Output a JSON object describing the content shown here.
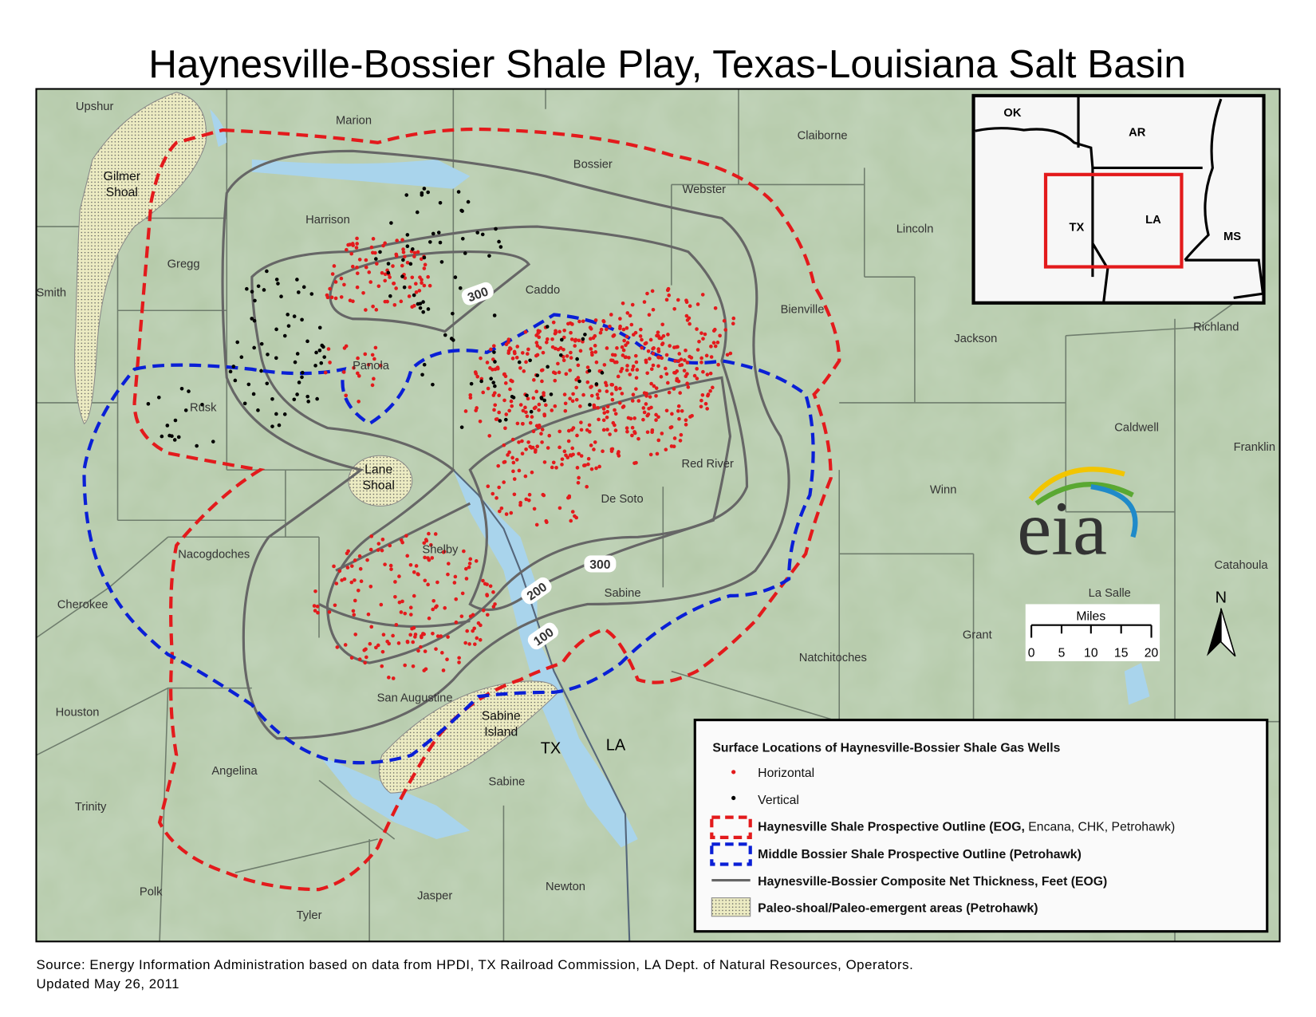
{
  "title": "Haynesville-Bossier Shale Play, Texas-Louisiana Salt Basin",
  "counties": [
    "Upshur",
    "Marion",
    "Claiborne",
    "Bossier",
    "Webster",
    "Harrison",
    "Lincoln",
    "Gregg",
    "Smith",
    "Caddo",
    "Bienville",
    "Panola",
    "Jackson",
    "Richland",
    "Rusk",
    "Caldwell",
    "Franklin",
    "Red River",
    "Lane",
    "Winn",
    "De Soto",
    "Nacogdoches",
    "Shelby",
    "Catahoula",
    "La Salle",
    "Sabine",
    "Cherokee",
    "Grant",
    "Natchitoches",
    "San Augustine",
    "Houston",
    "Angelina",
    "Sabine",
    "Trinity",
    "Polk",
    "Jasper",
    "Newton",
    "Tyler"
  ],
  "shoals": {
    "gilmer": [
      "Gilmer",
      "Shoal"
    ],
    "lane": [
      "Lane",
      "Shoal"
    ],
    "sabine": [
      "Sabine",
      "Island"
    ]
  },
  "contour_labels": [
    "300",
    "300",
    "200",
    "100"
  ],
  "state_labels": {
    "tx": "TX",
    "la": "LA"
  },
  "inset": {
    "states": [
      "OK",
      "AR",
      "TX",
      "LA",
      "MS"
    ],
    "highlight_color": "#e31a1c"
  },
  "logo": "eia",
  "scale_bar": {
    "title": "Miles",
    "ticks": [
      "0",
      "5",
      "10",
      "15",
      "20"
    ]
  },
  "north_arrow": "N",
  "legend": {
    "title": "Surface Locations of Haynesville-Bossier Shale Gas Wells",
    "items": [
      {
        "symbol": "red-dot",
        "label": "Horizontal",
        "color": "#e31a1c"
      },
      {
        "symbol": "black-dot",
        "label": "Vertical",
        "color": "#000000"
      },
      {
        "symbol": "red-dashed-box",
        "label_bold": "Haynesville Shale Prospective Outline (EOG,",
        "label": " Encana, CHK, Petrohawk)",
        "color": "#e31a1c"
      },
      {
        "symbol": "blue-dashed-box",
        "label_bold": "Middle Bossier Shale Prospective Outline (Petrohawk)",
        "label": "",
        "color": "#0a1fd6"
      },
      {
        "symbol": "gray-line",
        "label_bold": "Haynesville-Bossier Composite Net Thickness, Feet (EOG)",
        "label": "",
        "color": "#666666"
      },
      {
        "symbol": "stippled-box",
        "label_bold": "Paleo-shoal/Paleo-emergent areas (Petrohawk)",
        "label": "",
        "color": "#ecebc2"
      }
    ]
  },
  "source": "Source: Energy Information Administration based on data from HPDI, TX Railroad Commission, LA Dept. of Natural Resources, Operators.",
  "updated": "Updated May 26, 2011",
  "colors": {
    "land": "#a9c0a0",
    "water": "#a9d4ec",
    "red_outline": "#e31a1c",
    "blue_outline": "#0a1fd6",
    "contour": "#666666"
  }
}
